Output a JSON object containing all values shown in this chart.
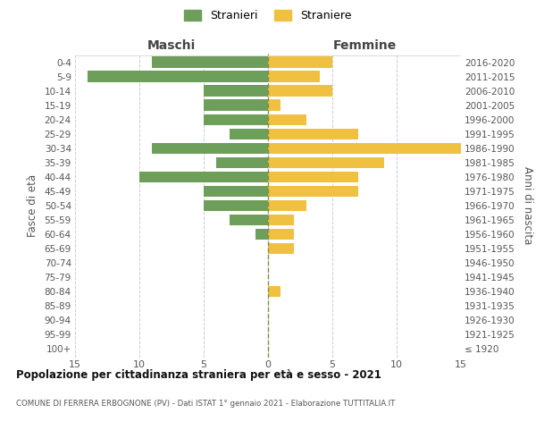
{
  "age_groups": [
    "100+",
    "95-99",
    "90-94",
    "85-89",
    "80-84",
    "75-79",
    "70-74",
    "65-69",
    "60-64",
    "55-59",
    "50-54",
    "45-49",
    "40-44",
    "35-39",
    "30-34",
    "25-29",
    "20-24",
    "15-19",
    "10-14",
    "5-9",
    "0-4"
  ],
  "birth_years": [
    "≤ 1920",
    "1921-1925",
    "1926-1930",
    "1931-1935",
    "1936-1940",
    "1941-1945",
    "1946-1950",
    "1951-1955",
    "1956-1960",
    "1961-1965",
    "1966-1970",
    "1971-1975",
    "1976-1980",
    "1981-1985",
    "1986-1990",
    "1991-1995",
    "1996-2000",
    "2001-2005",
    "2006-2010",
    "2011-2015",
    "2016-2020"
  ],
  "males": [
    0,
    0,
    0,
    0,
    0,
    0,
    0,
    0,
    1,
    3,
    5,
    5,
    10,
    4,
    9,
    3,
    5,
    5,
    5,
    14,
    9
  ],
  "females": [
    0,
    0,
    0,
    0,
    1,
    0,
    0,
    2,
    2,
    2,
    3,
    7,
    7,
    9,
    15,
    7,
    3,
    1,
    5,
    4,
    5
  ],
  "male_color": "#6d9e5a",
  "female_color": "#f0c040",
  "center_line_color": "#8a8a4a",
  "grid_color": "#cccccc",
  "bg_color": "#ffffff",
  "xlim": 15,
  "title": "Popolazione per cittadinanza straniera per età e sesso - 2021",
  "subtitle": "COMUNE DI FERRERA ERBOGNONE (PV) - Dati ISTAT 1° gennaio 2021 - Elaborazione TUTTITALIA.IT",
  "ylabel_left": "Fasce di età",
  "ylabel_right": "Anni di nascita",
  "xlabel_left": "Maschi",
  "xlabel_right": "Femmine",
  "legend_male": "Stranieri",
  "legend_female": "Straniere"
}
